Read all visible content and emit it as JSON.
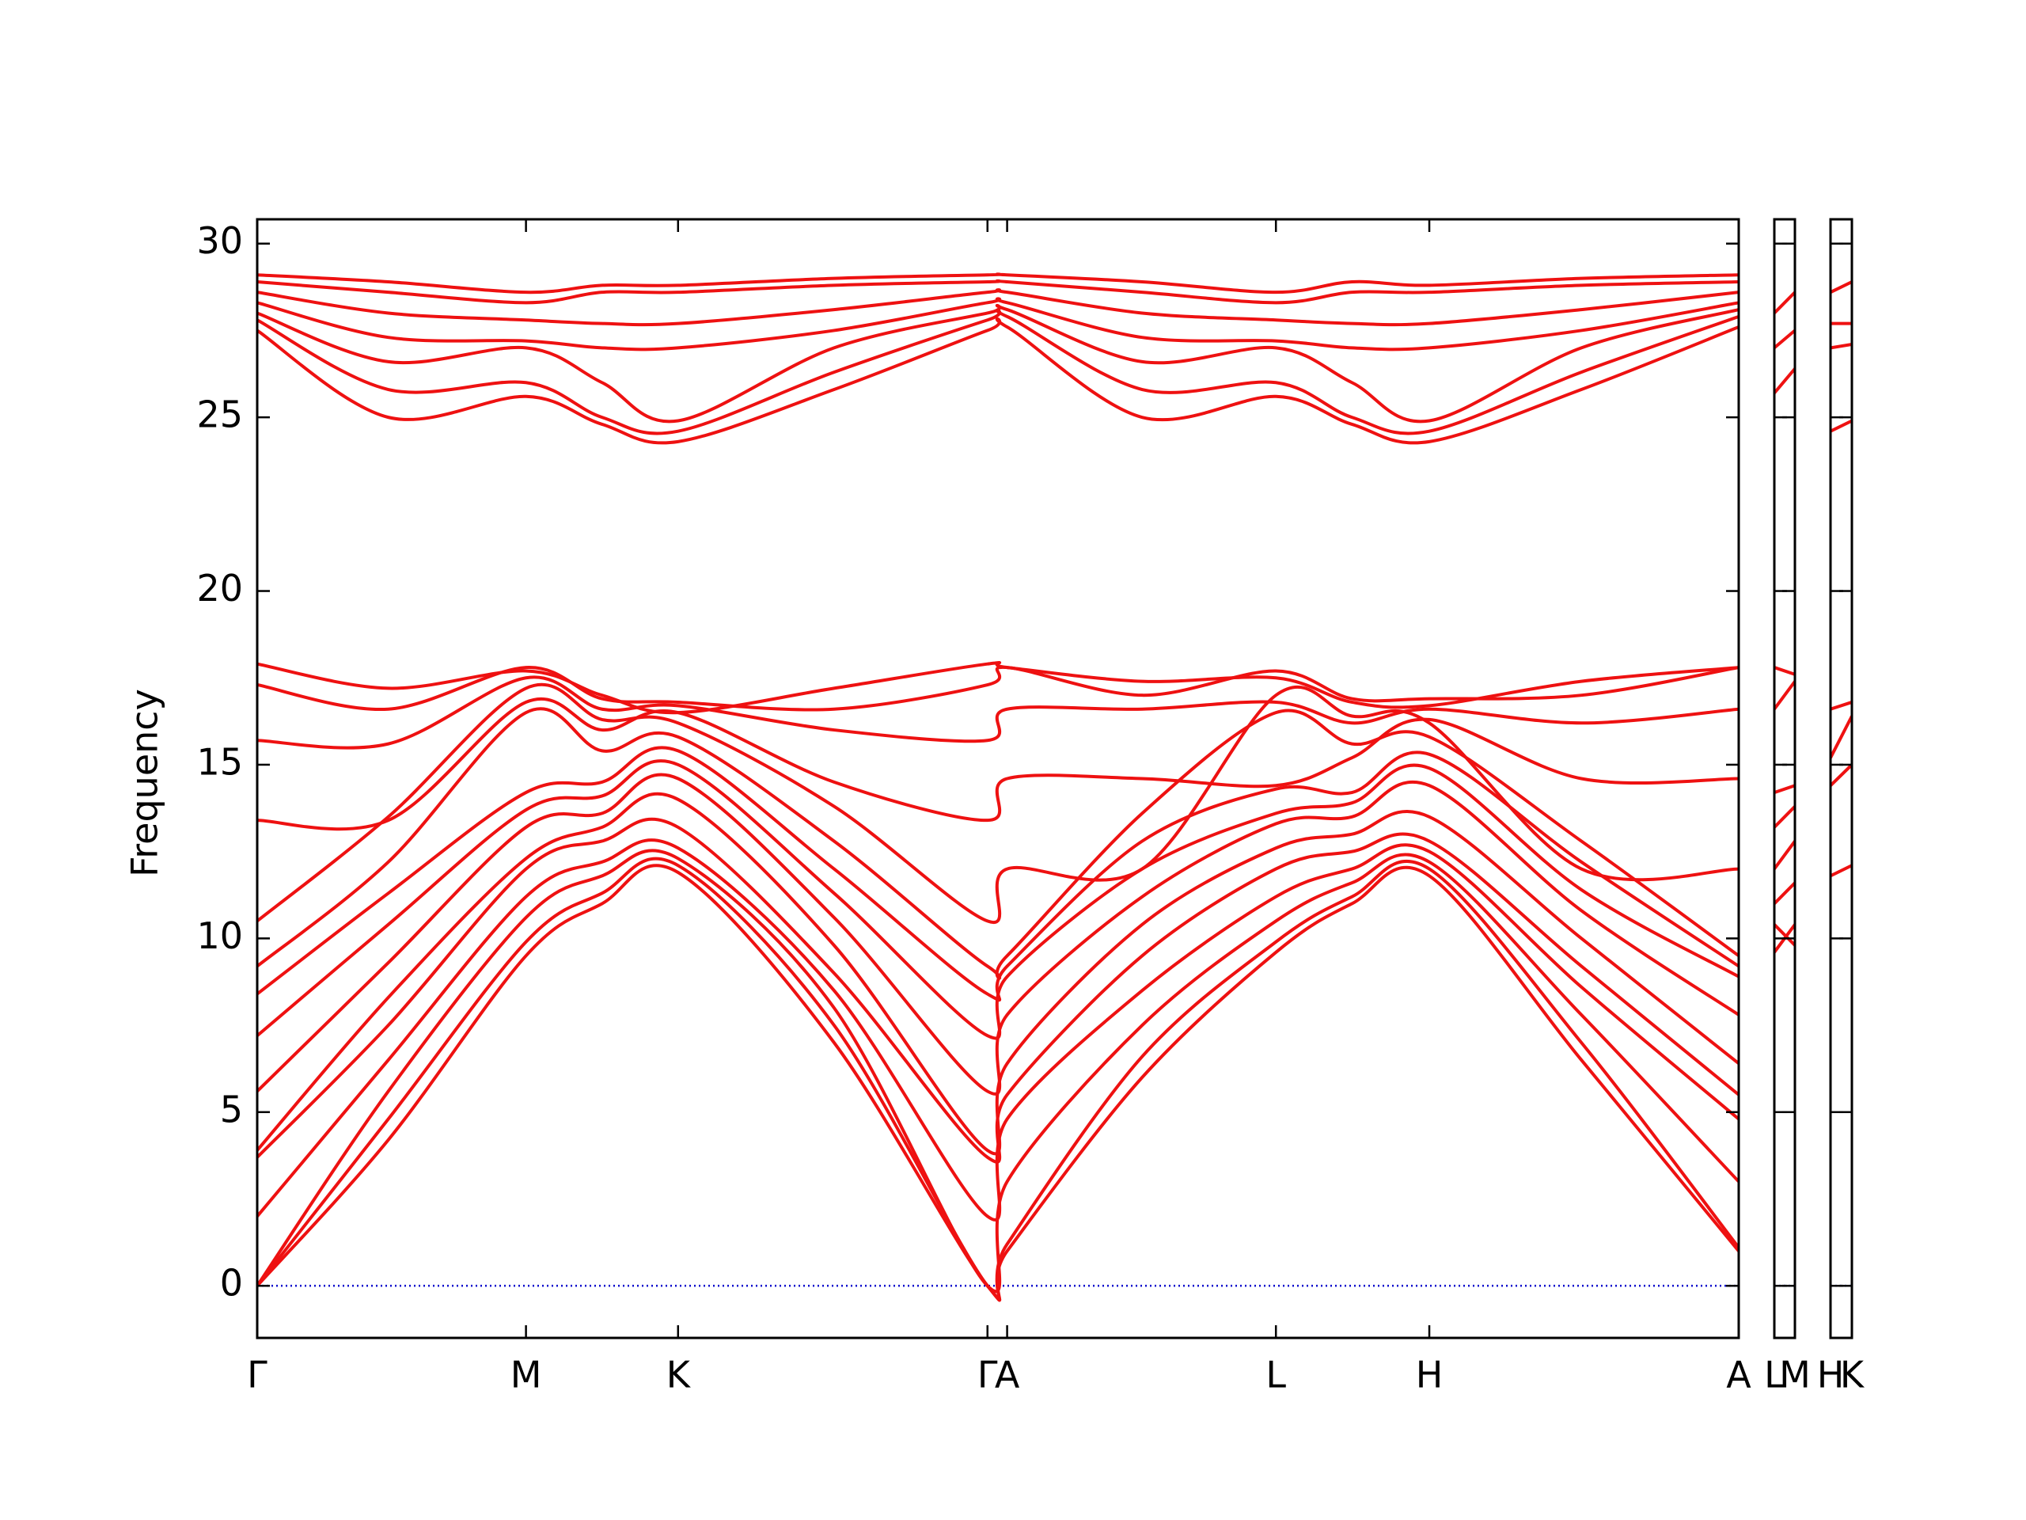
{
  "chart_data": [
    {
      "type": "line",
      "ylabel": "Frequency",
      "color": "#ee1111",
      "zero_line": {
        "value": 0,
        "color": "#0000cc"
      },
      "xlim": [
        0,
        1130
      ],
      "ylim": [
        -1.5,
        30.7
      ],
      "xticks": [
        {
          "value": 0,
          "label": "Γ"
        },
        {
          "value": 205,
          "label": "M"
        },
        {
          "value": 321,
          "label": "K"
        },
        {
          "value": 557,
          "label": "Γ"
        },
        {
          "value": 572,
          "label": "A"
        },
        {
          "value": 777,
          "label": "L"
        },
        {
          "value": 894,
          "label": "H"
        },
        {
          "value": 1130,
          "label": "A"
        }
      ],
      "yticks": [
        0,
        5,
        10,
        15,
        20,
        25,
        30
      ],
      "x": [
        0,
        100,
        205,
        263,
        321,
        440,
        557,
        572,
        675,
        777,
        835,
        894,
        1010,
        1130
      ],
      "series": [
        {
          "values": [
            0,
            4.2,
            9.5,
            11.0,
            11.9,
            7.0,
            0,
            1.0,
            6.0,
            9.6,
            11.0,
            11.8,
            6.5,
            1.0
          ]
        },
        {
          "values": [
            0,
            4.8,
            9.9,
            11.3,
            12.1,
            7.5,
            0,
            1.2,
            6.6,
            9.9,
            11.2,
            12.0,
            7.0,
            1.1
          ]
        },
        {
          "values": [
            0,
            5.6,
            10.6,
            11.8,
            12.3,
            8.0,
            0,
            3.0,
            7.5,
            10.5,
            11.6,
            12.2,
            7.8,
            3.0
          ]
        },
        {
          "values": [
            2.0,
            6.5,
            11.2,
            12.2,
            12.6,
            8.5,
            2.0,
            4.8,
            8.5,
            11.2,
            12.0,
            12.5,
            8.6,
            4.8
          ]
        },
        {
          "values": [
            3.7,
            7.5,
            12.0,
            12.8,
            13.2,
            9.0,
            3.7,
            5.5,
            9.5,
            12.0,
            12.5,
            12.8,
            9.2,
            5.5
          ]
        },
        {
          "values": [
            3.9,
            8.3,
            12.3,
            13.2,
            14.0,
            9.8,
            3.9,
            6.4,
            10.4,
            12.6,
            13.0,
            13.5,
            10.0,
            6.4
          ]
        },
        {
          "values": [
            5.6,
            9.3,
            13.2,
            13.6,
            14.6,
            10.6,
            5.6,
            7.8,
            11.2,
            13.3,
            13.5,
            14.4,
            10.8,
            7.8
          ]
        },
        {
          "values": [
            7.2,
            10.4,
            13.7,
            14.1,
            15.0,
            11.3,
            7.2,
            8.9,
            12.0,
            13.6,
            13.9,
            14.9,
            11.4,
            8.9
          ]
        },
        {
          "values": [
            8.4,
            11.3,
            14.2,
            14.5,
            15.4,
            12.0,
            8.4,
            9.2,
            12.8,
            14.3,
            14.2,
            15.3,
            12.2,
            9.2
          ]
        },
        {
          "values": [
            9.2,
            12.2,
            16.5,
            15.4,
            15.8,
            12.8,
            9.2,
            9.5,
            13.6,
            16.5,
            15.6,
            15.8,
            12.8,
            9.5
          ]
        },
        {
          "values": [
            10.5,
            13.5,
            17.2,
            16.3,
            16.2,
            13.8,
            10.5,
            12.0,
            12.0,
            17.0,
            16.4,
            16.2,
            12.0,
            12.0
          ]
        },
        {
          "values": [
            13.4,
            13.4,
            16.8,
            16.0,
            16.5,
            14.5,
            13.4,
            14.6,
            14.6,
            14.4,
            15.2,
            16.3,
            14.6,
            14.6
          ]
        },
        {
          "values": [
            15.7,
            15.6,
            17.5,
            16.6,
            16.7,
            16.0,
            15.7,
            16.6,
            16.6,
            16.8,
            16.2,
            16.6,
            16.2,
            16.6
          ]
        },
        {
          "values": [
            17.3,
            16.6,
            17.8,
            16.9,
            16.8,
            16.6,
            17.3,
            17.8,
            17.0,
            17.7,
            16.9,
            16.9,
            17.0,
            17.8
          ]
        },
        {
          "values": [
            17.9,
            17.2,
            17.7,
            17.0,
            16.5,
            17.2,
            17.9,
            17.8,
            17.4,
            17.5,
            16.8,
            16.7,
            17.4,
            17.8
          ]
        },
        {
          "values": [
            27.5,
            25.0,
            25.6,
            24.8,
            24.3,
            25.8,
            27.5,
            27.6,
            25.0,
            25.6,
            24.8,
            24.3,
            25.8,
            27.6
          ]
        },
        {
          "values": [
            27.8,
            25.8,
            26.0,
            25.0,
            24.6,
            26.3,
            27.8,
            27.9,
            25.8,
            26.0,
            25.0,
            24.6,
            26.3,
            27.9
          ]
        },
        {
          "values": [
            28.0,
            26.6,
            27.0,
            26.0,
            24.9,
            27.0,
            28.0,
            28.1,
            26.6,
            27.0,
            26.0,
            24.9,
            27.0,
            28.1
          ]
        },
        {
          "values": [
            28.3,
            27.3,
            27.2,
            27.0,
            27.0,
            27.5,
            28.3,
            28.3,
            27.3,
            27.2,
            27.0,
            27.0,
            27.5,
            28.3
          ]
        },
        {
          "values": [
            28.6,
            28.0,
            27.8,
            27.7,
            27.7,
            28.1,
            28.6,
            28.6,
            28.0,
            27.8,
            27.7,
            27.7,
            28.1,
            28.6
          ]
        },
        {
          "values": [
            28.9,
            28.6,
            28.3,
            28.6,
            28.6,
            28.8,
            28.9,
            28.9,
            28.6,
            28.3,
            28.6,
            28.6,
            28.8,
            28.9
          ]
        },
        {
          "values": [
            29.1,
            28.9,
            28.6,
            28.8,
            28.8,
            29.0,
            29.1,
            29.1,
            28.9,
            28.6,
            28.9,
            28.8,
            29.0,
            29.1
          ]
        }
      ]
    },
    {
      "type": "line",
      "color": "#ee1111",
      "zero_line": {
        "value": 0,
        "color": "#0000cc"
      },
      "xlim": [
        0,
        1
      ],
      "ylim": [
        -1.5,
        30.7
      ],
      "xticks": [
        {
          "value": 0,
          "label": "L"
        },
        {
          "value": 1,
          "label": "M"
        }
      ],
      "yticks": [
        0,
        5,
        10,
        15,
        20,
        25,
        30
      ],
      "x": [
        0,
        1
      ],
      "series": [
        {
          "values": [
            9.6,
            10.4
          ]
        },
        {
          "values": [
            10.4,
            9.8
          ]
        },
        {
          "values": [
            11.0,
            11.6
          ]
        },
        {
          "values": [
            12.0,
            12.8
          ]
        },
        {
          "values": [
            13.2,
            13.8
          ]
        },
        {
          "values": [
            14.2,
            14.4
          ]
        },
        {
          "values": [
            16.6,
            17.4
          ]
        },
        {
          "values": [
            17.8,
            17.6
          ]
        },
        {
          "values": [
            25.7,
            26.4
          ]
        },
        {
          "values": [
            27.0,
            27.5
          ]
        },
        {
          "values": [
            28.0,
            28.6
          ]
        }
      ]
    },
    {
      "type": "line",
      "color": "#ee1111",
      "zero_line": {
        "value": 0,
        "color": "#0000cc"
      },
      "xlim": [
        0,
        1
      ],
      "ylim": [
        -1.5,
        30.7
      ],
      "xticks": [
        {
          "value": 0,
          "label": "H"
        },
        {
          "value": 1,
          "label": "K"
        }
      ],
      "yticks": [
        0,
        5,
        10,
        15,
        20,
        25,
        30
      ],
      "x": [
        0,
        1
      ],
      "series": [
        {
          "values": [
            11.8,
            12.1
          ]
        },
        {
          "values": [
            14.4,
            15.0
          ]
        },
        {
          "values": [
            15.2,
            16.4
          ]
        },
        {
          "values": [
            16.6,
            16.8
          ]
        },
        {
          "values": [
            24.6,
            24.9
          ]
        },
        {
          "values": [
            27.0,
            27.1
          ]
        },
        {
          "values": [
            27.7,
            27.7
          ]
        },
        {
          "values": [
            28.6,
            28.9
          ]
        }
      ]
    }
  ]
}
